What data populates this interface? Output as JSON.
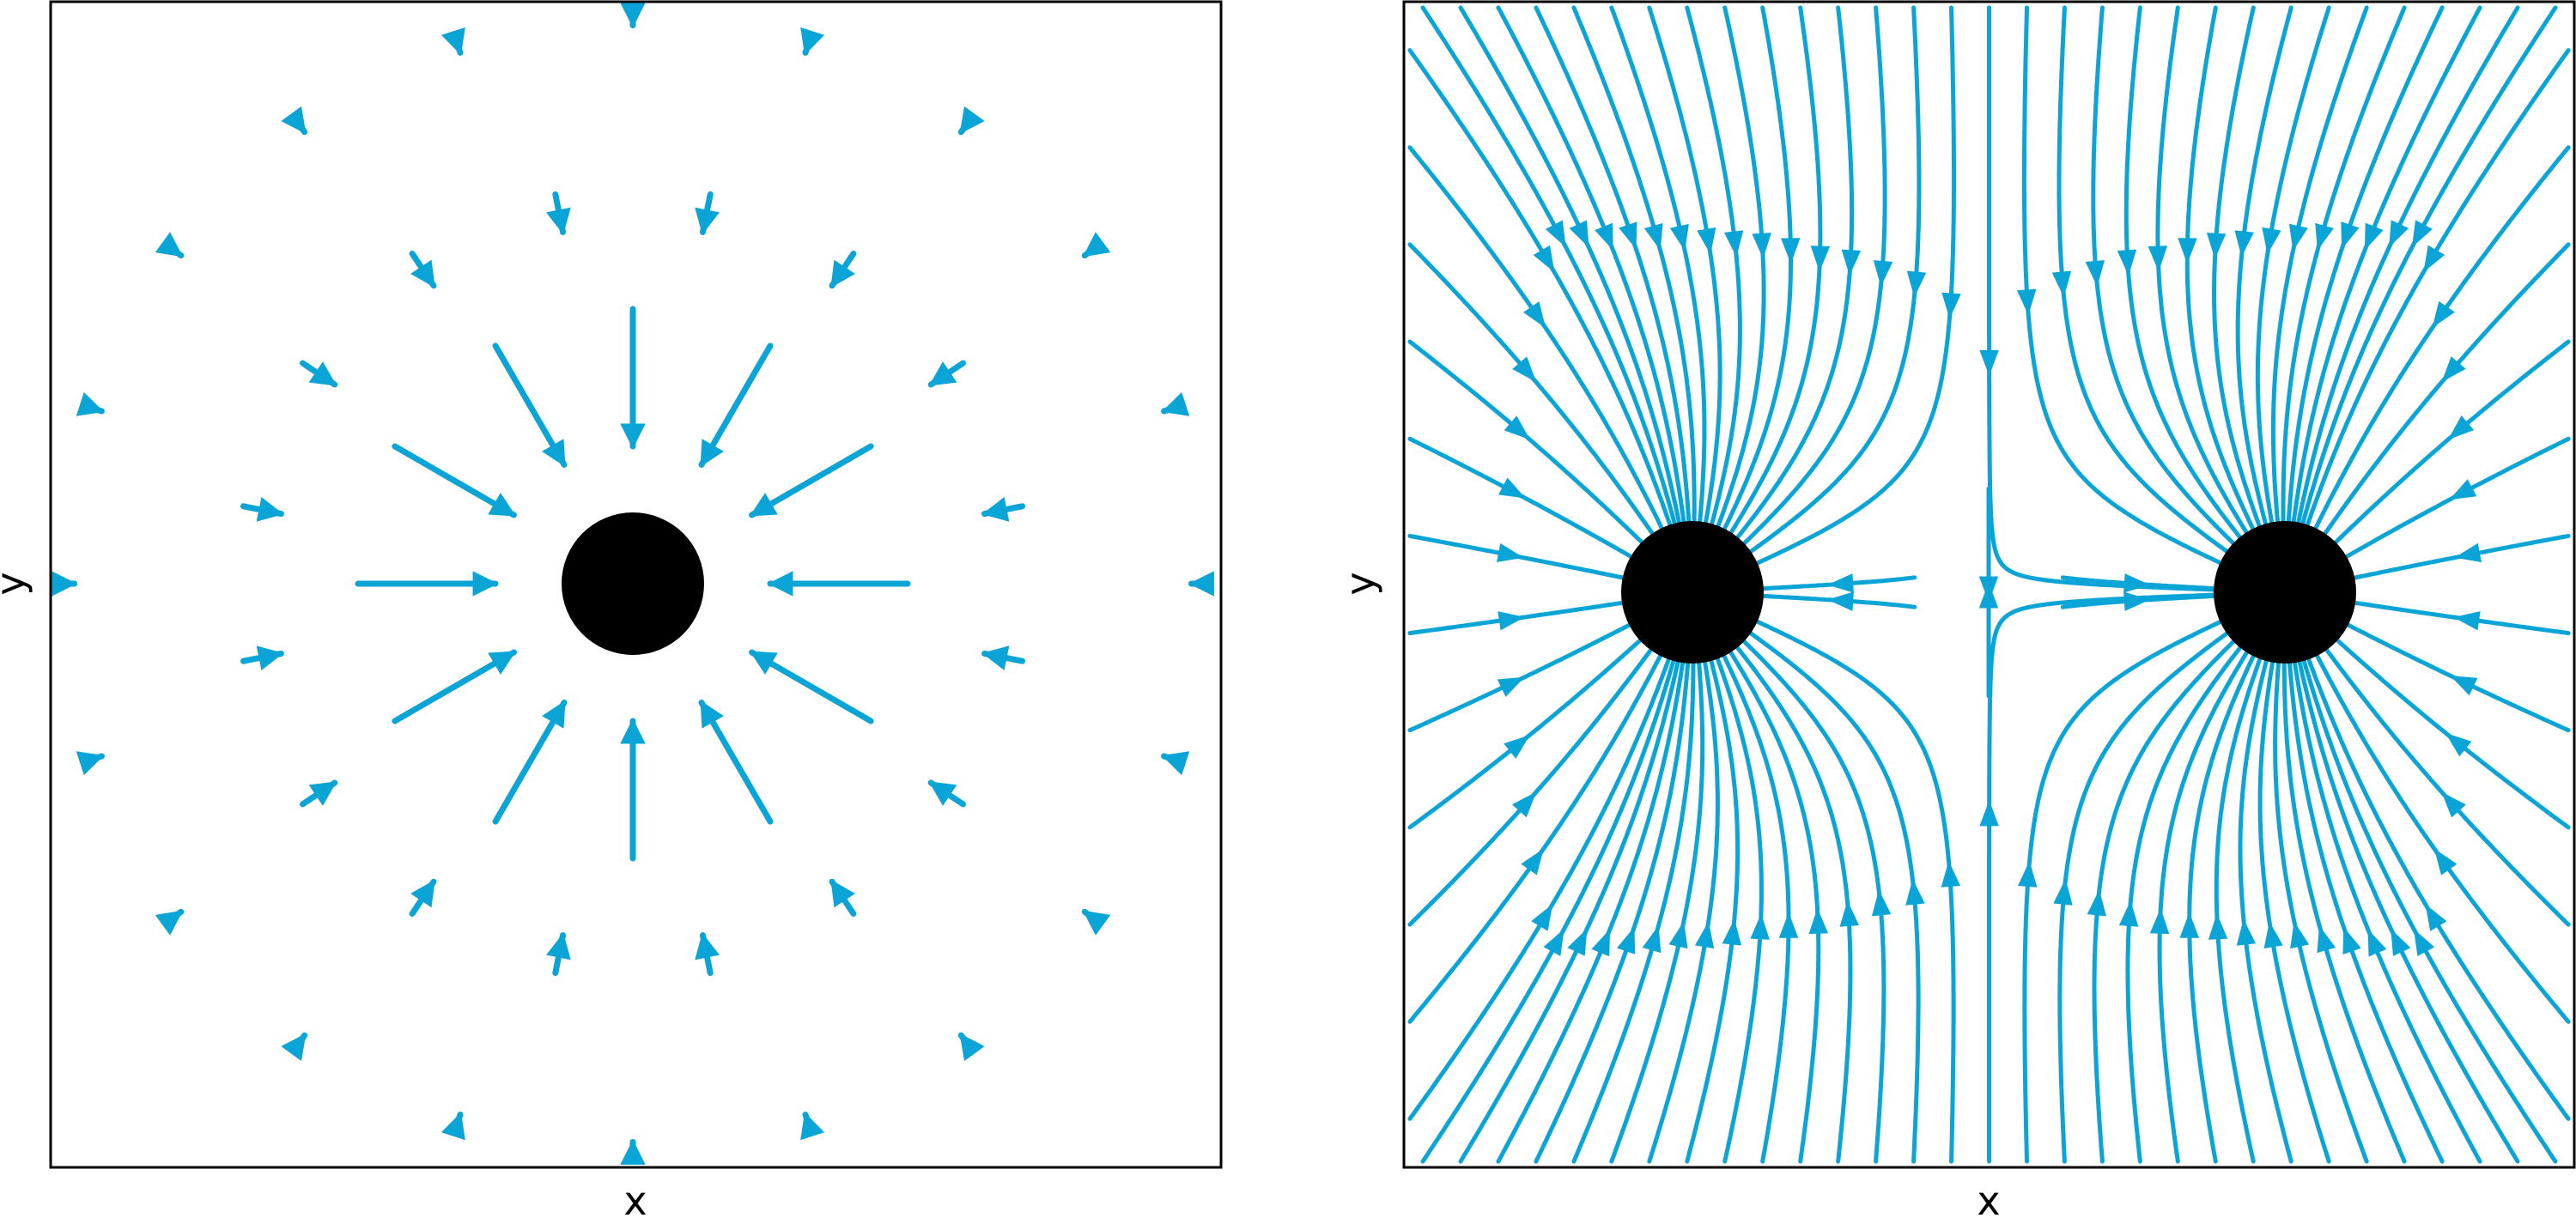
{
  "figure": {
    "background": "#ffffff",
    "field_color": "#0aa4d6",
    "charge_color": "#000000"
  },
  "panels": [
    {
      "kind": "vector-field",
      "xlabel": "x",
      "ylabel": "y",
      "charges": [
        {
          "x": 0,
          "y": 0
        }
      ]
    },
    {
      "kind": "stream-lines",
      "xlabel": "x",
      "ylabel": "y",
      "charges": [
        {
          "x": -1,
          "y": 0
        },
        {
          "x": 1,
          "y": 0
        }
      ]
    }
  ]
}
